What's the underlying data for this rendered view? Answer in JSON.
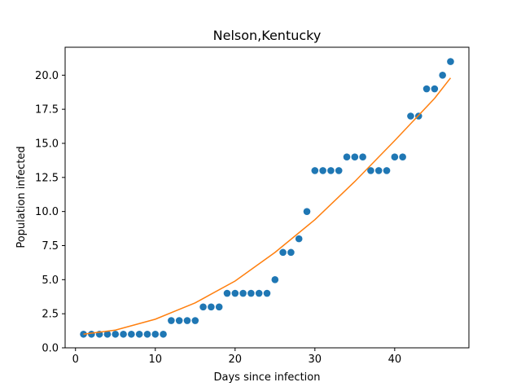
{
  "chart_data": {
    "type": "scatter",
    "title": "Nelson,Kentucky",
    "xlabel": "Days since infection",
    "ylabel": "Population infected",
    "xlim": [
      -1.3,
      49.3
    ],
    "ylim": [
      0,
      22.05
    ],
    "xticks": [
      0,
      10,
      20,
      30,
      40
    ],
    "yticks": [
      0,
      2.5,
      5,
      7.5,
      10,
      12.5,
      15,
      17.5,
      20
    ],
    "ytick_labels": [
      "0.0",
      "2.5",
      "5.0",
      "7.5",
      "10.0",
      "12.5",
      "15.0",
      "17.5",
      "20.0"
    ],
    "grid": false,
    "series": [
      {
        "kind": "points",
        "color": "#1f77b4",
        "x": [
          1,
          2,
          3,
          4,
          5,
          6,
          7,
          8,
          9,
          10,
          11,
          12,
          13,
          14,
          15,
          16,
          17,
          18,
          19,
          20,
          21,
          22,
          23,
          24,
          25,
          26,
          27,
          28,
          29,
          30,
          31,
          32,
          33,
          34,
          35,
          36,
          37,
          38,
          39,
          40,
          41,
          42,
          43,
          44,
          45,
          46,
          47
        ],
        "y": [
          1,
          1,
          1,
          1,
          1,
          1,
          1,
          1,
          1,
          1,
          1,
          2,
          2,
          2,
          2,
          3,
          3,
          3,
          4,
          4,
          4,
          4,
          4,
          4,
          5,
          7,
          7,
          8,
          10,
          13,
          13,
          13,
          13,
          14,
          14,
          14,
          13,
          13,
          13,
          14,
          14,
          17,
          17,
          19,
          19,
          20,
          21
        ]
      },
      {
        "kind": "fit",
        "color": "#ff7f0e",
        "x": [
          1,
          5,
          10,
          15,
          20,
          25,
          30,
          35,
          40,
          45,
          47
        ],
        "y": [
          1.0,
          1.3,
          2.1,
          3.3,
          4.9,
          7.0,
          9.4,
          12.2,
          15.2,
          18.3,
          19.8
        ]
      }
    ]
  }
}
